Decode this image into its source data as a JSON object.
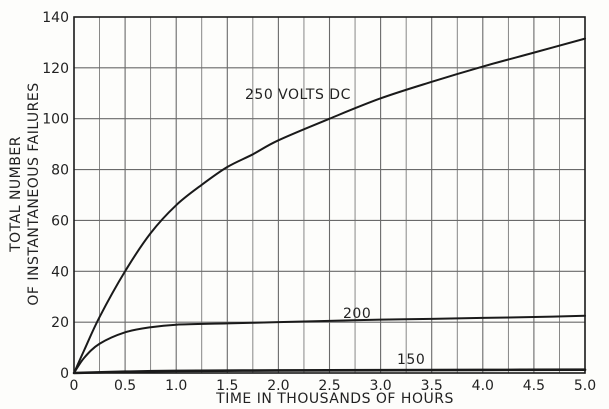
{
  "chart_data": {
    "type": "line",
    "xlabel": "TIME IN THOUSANDS OF HOURS",
    "ylabel_lines": [
      "TOTAL NUMBER",
      "OF INSTANTANEOUS FAILURES"
    ],
    "xlim": [
      0,
      5.0
    ],
    "ylim": [
      0,
      140
    ],
    "x_ticks": [
      "0",
      "0.5",
      "1.0",
      "1.5",
      "2.0",
      "2.5",
      "3.0",
      "3.5",
      "4.0",
      "4.5",
      "5.0"
    ],
    "y_ticks": [
      "0",
      "20",
      "40",
      "60",
      "80",
      "100",
      "120",
      "140"
    ],
    "x_tick_values": [
      0,
      0.5,
      1.0,
      1.5,
      2.0,
      2.5,
      3.0,
      3.5,
      4.0,
      4.5,
      5.0
    ],
    "y_tick_values": [
      0,
      20,
      40,
      60,
      80,
      100,
      120,
      140
    ],
    "x_minor_step": 0.25,
    "grid": true,
    "line_color": "#1a1a1a",
    "grid_color": "#6a6a6a",
    "series": [
      {
        "name": "250 VOLTS DC",
        "points": [
          [
            0,
            0
          ],
          [
            0.1,
            9
          ],
          [
            0.25,
            22
          ],
          [
            0.5,
            40
          ],
          [
            0.75,
            55
          ],
          [
            1.0,
            66
          ],
          [
            1.25,
            74
          ],
          [
            1.5,
            81
          ],
          [
            1.75,
            86
          ],
          [
            2.0,
            91.5
          ],
          [
            2.5,
            100
          ],
          [
            3.0,
            108
          ],
          [
            3.5,
            114.5
          ],
          [
            4.0,
            120.5
          ],
          [
            4.5,
            126
          ],
          [
            5.0,
            131.5
          ]
        ]
      },
      {
        "name": "200",
        "points": [
          [
            0,
            0
          ],
          [
            0.1,
            6
          ],
          [
            0.25,
            11.5
          ],
          [
            0.5,
            16
          ],
          [
            0.75,
            18
          ],
          [
            1.0,
            19
          ],
          [
            1.5,
            19.5
          ],
          [
            2.0,
            20
          ],
          [
            2.5,
            20.5
          ],
          [
            3.0,
            21
          ],
          [
            3.5,
            21.3
          ],
          [
            4.0,
            21.7
          ],
          [
            4.5,
            22
          ],
          [
            5.0,
            22.5
          ]
        ]
      },
      {
        "name": "150",
        "points": [
          [
            0,
            0
          ],
          [
            0.5,
            0.5
          ],
          [
            1.0,
            0.8
          ],
          [
            2.0,
            1.0
          ],
          [
            3.0,
            1.1
          ],
          [
            4.0,
            1.2
          ],
          [
            5.0,
            1.3
          ]
        ]
      }
    ]
  }
}
